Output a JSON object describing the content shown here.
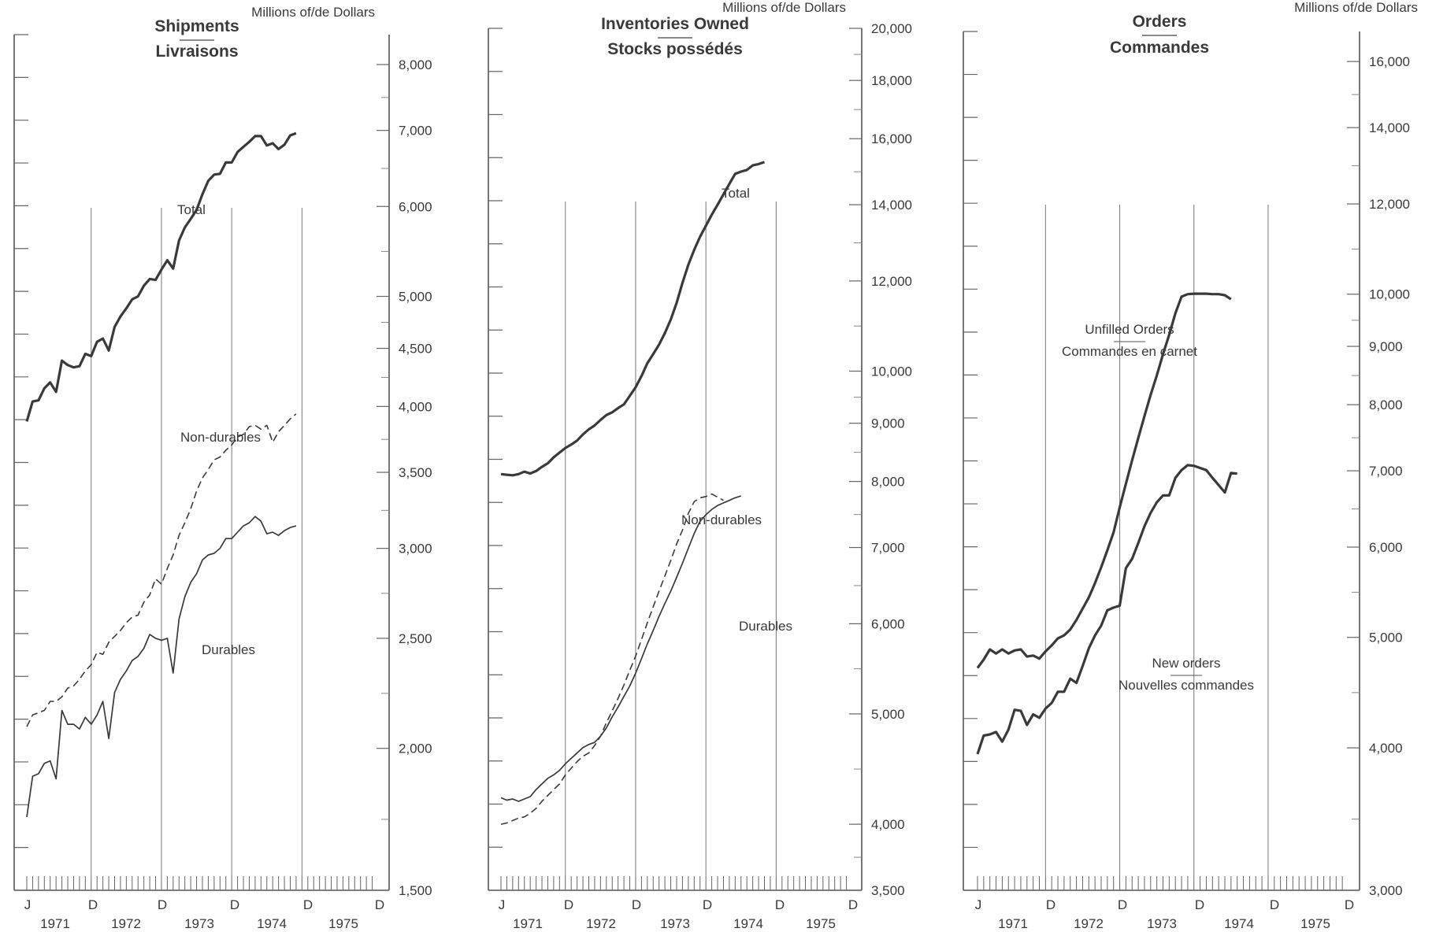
{
  "chart_data": [
    {
      "type": "line",
      "title": "Shipments",
      "subtitle": "Livraisons",
      "ylabel": "Millions of/de Dollars",
      "yscale": "log",
      "ylim": [
        1500,
        8500
      ],
      "yticks": [
        1500,
        2000,
        2500,
        3000,
        3500,
        4000,
        4500,
        5000,
        6000,
        7000,
        8000
      ],
      "ytick_labels": [
        "1,500",
        "2,000",
        "2,500",
        "3,000",
        "3,500",
        "4,000",
        "4,500",
        "5,000",
        "6,000",
        "7,000",
        "8,000"
      ],
      "xlim": [
        0,
        60
      ],
      "month_labels": [
        "J",
        "D",
        "D",
        "D",
        "D",
        "D"
      ],
      "year_labels": [
        "1971",
        "1972",
        "1973",
        "1974",
        "1975"
      ],
      "grid": false,
      "series": [
        {
          "name": "Total",
          "style": "solid-thick",
          "values": [
            3880,
            4040,
            4050,
            4150,
            4200,
            4120,
            4390,
            4350,
            4330,
            4340,
            4450,
            4430,
            4560,
            4590,
            4480,
            4700,
            4800,
            4880,
            4970,
            5000,
            5110,
            5180,
            5170,
            5280,
            5380,
            5290,
            5600,
            5750,
            5850,
            5960,
            6150,
            6320,
            6400,
            6410,
            6560,
            6560,
            6700,
            6770,
            6840,
            6920,
            6920,
            6790,
            6820,
            6740,
            6800,
            6930,
            6960
          ]
        },
        {
          "name": "Non-durables",
          "style": "dashed",
          "values": [
            2090,
            2140,
            2150,
            2160,
            2200,
            2200,
            2220,
            2260,
            2270,
            2300,
            2340,
            2370,
            2430,
            2420,
            2480,
            2510,
            2540,
            2580,
            2610,
            2620,
            2690,
            2730,
            2820,
            2790,
            2880,
            2960,
            3080,
            3160,
            3250,
            3370,
            3460,
            3520,
            3590,
            3610,
            3660,
            3700,
            3760,
            3780,
            3840,
            3850,
            3820,
            3850,
            3720,
            3800,
            3850,
            3900,
            3940
          ]
        },
        {
          "name": "Durables",
          "style": "solid-thin",
          "values": [
            1740,
            1890,
            1900,
            1940,
            1950,
            1880,
            2160,
            2100,
            2100,
            2080,
            2130,
            2100,
            2140,
            2200,
            2040,
            2240,
            2300,
            2340,
            2390,
            2410,
            2450,
            2520,
            2500,
            2490,
            2500,
            2330,
            2600,
            2720,
            2800,
            2850,
            2930,
            2960,
            2970,
            3000,
            3060,
            3060,
            3100,
            3140,
            3160,
            3200,
            3170,
            3090,
            3100,
            3080,
            3110,
            3130,
            3140
          ]
        }
      ],
      "annotations": [
        "Total",
        "Non-durables",
        "Durables"
      ]
    },
    {
      "type": "line",
      "title": "Inventories Owned",
      "subtitle": "Stocks possédés",
      "ylabel": "Millions of/de Dollars",
      "yscale": "log",
      "ylim": [
        3500,
        20000
      ],
      "yticks": [
        3500,
        4000,
        5000,
        6000,
        7000,
        8000,
        9000,
        10000,
        12000,
        14000,
        16000,
        18000,
        20000
      ],
      "ytick_labels": [
        "3,500",
        "4,000",
        "5,000",
        "6,000",
        "7,000",
        "8,000",
        "9,000",
        "10,000",
        "12,000",
        "14,000",
        "16,000",
        "18,000",
        "20,000"
      ],
      "xlim": [
        0,
        60
      ],
      "month_labels": [
        "J",
        "D",
        "D",
        "D",
        "D",
        "D"
      ],
      "year_labels": [
        "1971",
        "1972",
        "1973",
        "1974",
        "1975"
      ],
      "grid": false,
      "series": [
        {
          "name": "Total",
          "style": "solid-thick",
          "values": [
            8120,
            8110,
            8100,
            8120,
            8160,
            8130,
            8170,
            8240,
            8300,
            8400,
            8480,
            8560,
            8620,
            8690,
            8800,
            8890,
            8960,
            9060,
            9150,
            9200,
            9280,
            9350,
            9510,
            9680,
            9900,
            10160,
            10350,
            10550,
            10800,
            11100,
            11480,
            11950,
            12400,
            12780,
            13120,
            13420,
            13720,
            14000,
            14300,
            14600,
            14900,
            14970,
            15020,
            15160,
            15200,
            15260
          ]
        },
        {
          "name": "Non-durables",
          "style": "solid-thin",
          "values": [
            4220,
            4200,
            4210,
            4190,
            4210,
            4230,
            4290,
            4340,
            4390,
            4420,
            4460,
            4520,
            4570,
            4620,
            4670,
            4700,
            4720,
            4780,
            4860,
            4970,
            5070,
            5180,
            5290,
            5430,
            5590,
            5760,
            5920,
            6090,
            6250,
            6410,
            6590,
            6780,
            6990,
            7200,
            7380,
            7480,
            7560,
            7620,
            7660,
            7700,
            7740,
            7770
          ]
        },
        {
          "name": "Durables",
          "style": "dashed",
          "values": [
            4000,
            4010,
            4030,
            4050,
            4060,
            4090,
            4130,
            4190,
            4240,
            4290,
            4340,
            4420,
            4480,
            4540,
            4590,
            4620,
            4690,
            4780,
            4910,
            5030,
            5160,
            5300,
            5460,
            5620,
            5810,
            6010,
            6210,
            6410,
            6610,
            6820,
            7050,
            7250,
            7500,
            7680,
            7740,
            7760,
            7800,
            7750,
            7700
          ]
        }
      ],
      "annotations": [
        "Total",
        "Non-durables",
        "Durables"
      ]
    },
    {
      "type": "line",
      "title": "Orders",
      "subtitle": "Commandes",
      "ylabel": "Millions of/de Dollars",
      "yscale": "log",
      "ylim": [
        3000,
        17000
      ],
      "yticks": [
        3000,
        4000,
        5000,
        6000,
        7000,
        8000,
        9000,
        10000,
        12000,
        14000,
        16000
      ],
      "ytick_labels": [
        "3,000",
        "4,000",
        "5,000",
        "6,000",
        "7,000",
        "8,000",
        "9,000",
        "10,000",
        "12,000",
        "14,000",
        "16,000"
      ],
      "xlim": [
        0,
        60
      ],
      "month_labels": [
        "J",
        "D",
        "D",
        "D",
        "D",
        "D"
      ],
      "year_labels": [
        "1971",
        "1972",
        "1973",
        "1974",
        "1975"
      ],
      "grid": false,
      "series": [
        {
          "name": "Unfilled Orders",
          "style": "solid-thick",
          "values": [
            4700,
            4780,
            4880,
            4840,
            4880,
            4840,
            4870,
            4880,
            4810,
            4820,
            4790,
            4860,
            4920,
            4990,
            5020,
            5080,
            5180,
            5300,
            5420,
            5580,
            5760,
            5960,
            6180,
            6500,
            6820,
            7150,
            7480,
            7820,
            8160,
            8490,
            8860,
            9210,
            9620,
            9950,
            10000,
            10010,
            10010,
            10010,
            10000,
            10000,
            9980,
            9900
          ]
        },
        {
          "name": "New orders",
          "style": "solid-thick",
          "values": [
            3950,
            4100,
            4110,
            4130,
            4050,
            4150,
            4320,
            4310,
            4190,
            4280,
            4250,
            4330,
            4380,
            4480,
            4480,
            4600,
            4560,
            4720,
            4890,
            5020,
            5120,
            5280,
            5310,
            5330,
            5750,
            5860,
            6050,
            6260,
            6430,
            6570,
            6660,
            6660,
            6900,
            7010,
            7080,
            7070,
            7040,
            7010,
            6900,
            6800,
            6700,
            6970,
            6960
          ]
        }
      ],
      "annotations": [
        "Unfilled Orders",
        "Commandes en carnet",
        "New orders",
        "Nouvelles commandes"
      ]
    }
  ]
}
